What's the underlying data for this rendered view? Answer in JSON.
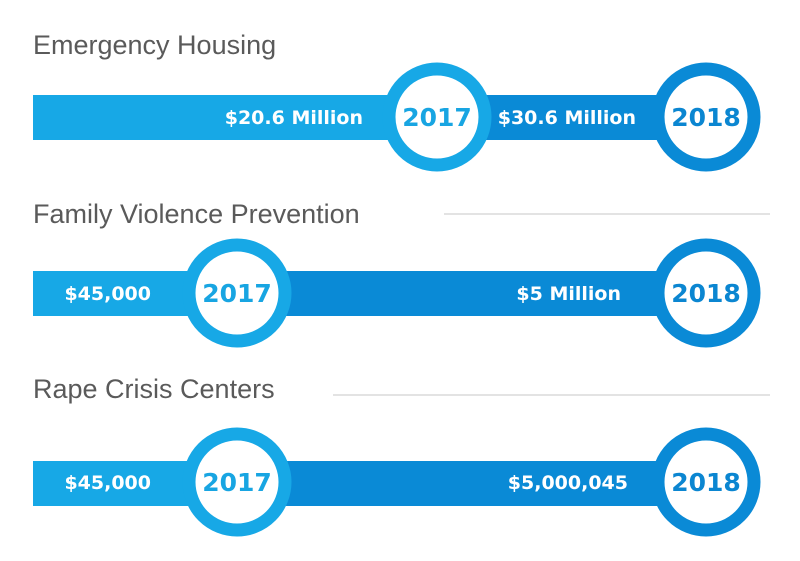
{
  "colors": {
    "bar_2017": "#17a8e6",
    "bar_2018": "#0a8ad6",
    "ring_2017": "#17a8e6",
    "ring_2018": "#0a8ad6",
    "year_text_2017": "#18a5e2",
    "year_text_2018": "#0b86d1",
    "divider": "#e3e3e3",
    "title_text": "#5a5a5a"
  },
  "chart_data": {
    "type": "table",
    "rows": [
      {
        "category": "Emergency Housing",
        "year_2017": "2017",
        "amount_2017": "$20.6 Million",
        "year_2018": "2018",
        "amount_2018": "$30.6 Million"
      },
      {
        "category": "Family Violence Prevention",
        "year_2017": "2017",
        "amount_2017": "$45,000",
        "year_2018": "2018",
        "amount_2018": "$5 Million"
      },
      {
        "category": "Rape Crisis Centers",
        "year_2017": "2017",
        "amount_2017": "$45,000",
        "year_2018": "2018",
        "amount_2018": "$5,000,045"
      }
    ]
  }
}
